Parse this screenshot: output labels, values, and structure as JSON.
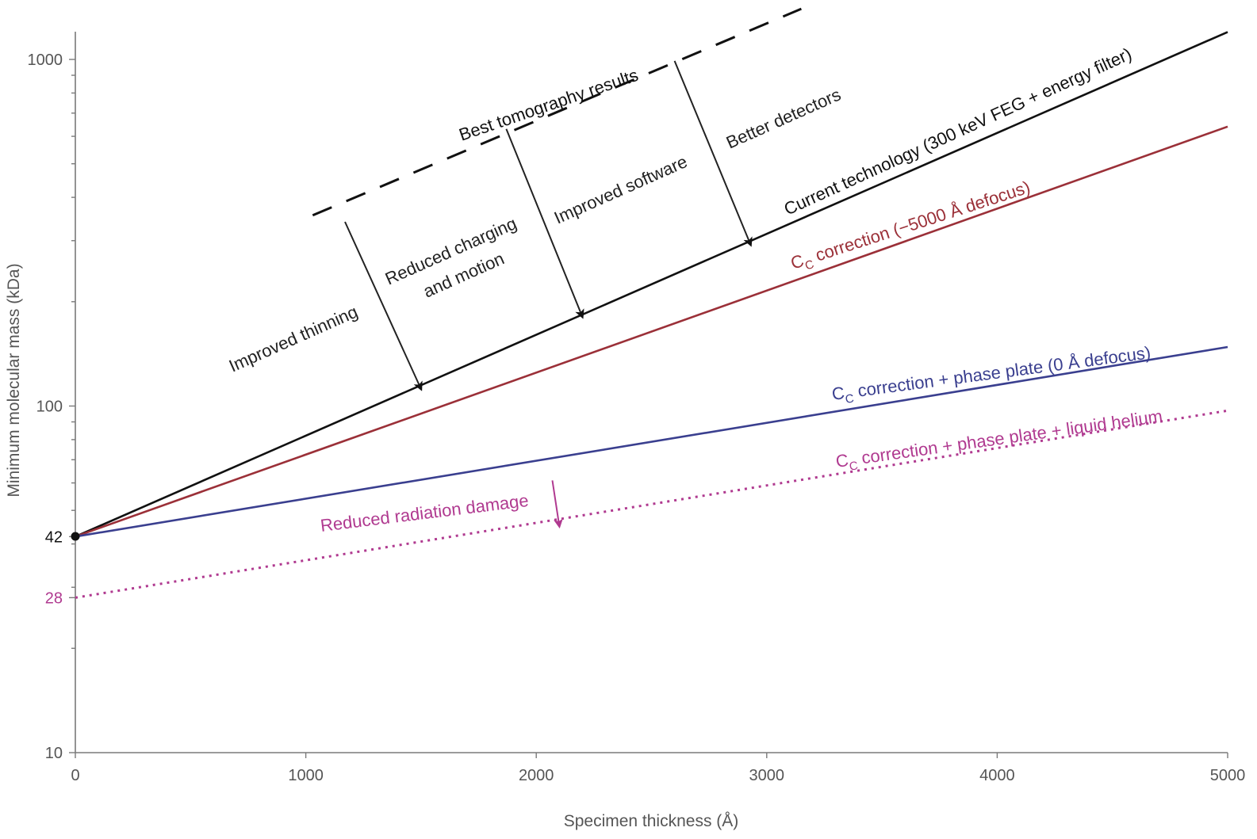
{
  "chart_data": {
    "type": "line",
    "xlabel": "Specimen thickness (Å)",
    "ylabel": "Minimum molecular mass (kDa)",
    "xlim": [
      0,
      5000
    ],
    "ylim": [
      10,
      1000
    ],
    "yscale": "log",
    "grid": false,
    "x_ticks": [
      "0",
      "1000",
      "2000",
      "3000",
      "4000",
      "5000"
    ],
    "y_ticks": [
      "10",
      "100",
      "1000"
    ],
    "y_marked": [
      {
        "label": "42",
        "value": 42,
        "color": "#111111"
      },
      {
        "label": "28",
        "value": 28,
        "color": "#b03a90"
      }
    ],
    "series": [
      {
        "label": "Current technology (300 keV FEG + energy filter)",
        "x": [
          0,
          5000
        ],
        "y": [
          42,
          1200
        ],
        "color": "#111111",
        "style": "solid"
      },
      {
        "label": "C",
        "sub": "C",
        "label_rest": " correction (−5000 Å defocus)",
        "x": [
          0,
          5000
        ],
        "y": [
          42,
          640
        ],
        "color": "#9b3038",
        "style": "solid"
      },
      {
        "label": "C",
        "sub": "C",
        "label_rest": " correction + phase plate (0 Å defocus)",
        "x": [
          0,
          5000
        ],
        "y": [
          42,
          148
        ],
        "color": "#3a3f8f",
        "style": "solid"
      },
      {
        "label": "C",
        "sub": "C",
        "label_rest": " correction + phase plate + liquid helium",
        "x": [
          0,
          5000
        ],
        "y": [
          28,
          97
        ],
        "color": "#b03a90",
        "style": "dotted"
      },
      {
        "label": "Best tomography results",
        "x": [
          1030,
          3150
        ],
        "y": [
          355,
          1400
        ],
        "color": "#111111",
        "style": "dashed"
      }
    ],
    "annotations": [
      {
        "text": "Improved thinning",
        "color": "#222222",
        "from": [
          1170,
          340
        ],
        "to": [
          1500,
          112
        ]
      },
      {
        "text": "Reduced charging",
        "color": "#222222",
        "from": [
          1870,
          630
        ],
        "to": [
          2200,
          181
        ]
      },
      {
        "text": "and motion",
        "color": "#222222",
        "from": null,
        "to": null
      },
      {
        "text": "Improved software",
        "color": "#222222",
        "from": null,
        "to": null
      },
      {
        "text": "Better detectors",
        "color": "#222222",
        "from": [
          2600,
          990
        ],
        "to": [
          2930,
          292
        ]
      },
      {
        "text": "Reduced radiation damage",
        "color": "#b03a90",
        "from": [
          2070,
          61
        ],
        "to": [
          2100,
          45
        ]
      }
    ]
  }
}
